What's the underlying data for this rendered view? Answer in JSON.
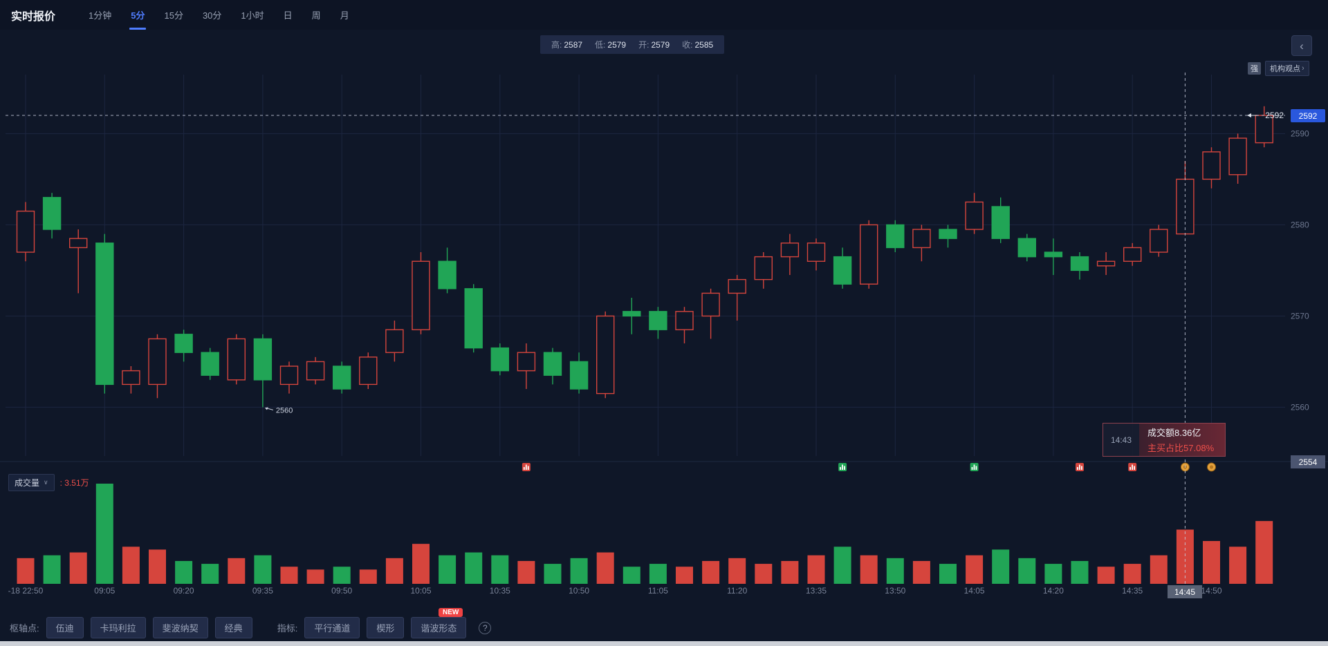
{
  "header": {
    "title": "实时报价",
    "tabs": [
      {
        "label": "1分钟"
      },
      {
        "label": "5分"
      },
      {
        "label": "15分"
      },
      {
        "label": "30分"
      },
      {
        "label": "1小时"
      },
      {
        "label": "日"
      },
      {
        "label": "周"
      },
      {
        "label": "月"
      }
    ]
  },
  "ohlc_bar": {
    "items": [
      {
        "label": "高:",
        "value": "2587"
      },
      {
        "label": "低:",
        "value": "2579"
      },
      {
        "label": "开:",
        "value": "2579"
      },
      {
        "label": "收:",
        "value": "2585"
      }
    ]
  },
  "top_right": {
    "chevron": "‹",
    "strength_badge": "强",
    "institution_link": "机构观点",
    "link_arrow": "›"
  },
  "price_axis": {
    "current_price_tag": "2592",
    "bottom_tag": "2554"
  },
  "annotations": {
    "low_label": "2560",
    "current_price_label": "2592",
    "crosshair_time": "14:45",
    "tooltip": {
      "time": "14:43",
      "line1": "成交额8.36亿",
      "line2": "主买占比57.08%"
    }
  },
  "volume_pane": {
    "indicator_label": "成交量",
    "caret": "∨",
    "value_prefix": ":",
    "value": "3.51万"
  },
  "bottom_toolbar": {
    "pivot_label": "枢轴点:",
    "pivot_buttons": [
      "伍迪",
      "卡玛利拉",
      "斐波纳契",
      "经典"
    ],
    "indicator_label": "指标:",
    "indicator_buttons": [
      "平行通道",
      "楔形",
      "谐波形态"
    ],
    "new_badge": "NEW",
    "help_icon": "?"
  },
  "colors": {
    "up_red": "#d6453d",
    "down_green": "#21a556",
    "accent_blue": "#2a58dd",
    "alert_red": "#ef4f4a",
    "badge_orange": "#e6a23c",
    "grid": "#1c2640",
    "axis_text": "#7a8398",
    "background": "#0f1728",
    "crosshair": "#c7cedd"
  },
  "chart_data": {
    "type": "candlestick",
    "timeframe": "5分",
    "current_price": 2592,
    "price_axis_ticks": [
      2590,
      2580,
      2570,
      2560
    ],
    "bottom_axis_price": 2554,
    "low_annotation": {
      "candle_index": 9,
      "price": 2560,
      "label": "2560"
    },
    "crosshair": {
      "candle_index": 44,
      "time_label": "14:45",
      "price": 2592
    },
    "x_labels": [
      {
        "candle_index": 0,
        "label": "-18 22:50"
      },
      {
        "candle_index": 3,
        "label": "09:05"
      },
      {
        "candle_index": 6,
        "label": "09:20"
      },
      {
        "candle_index": 9,
        "label": "09:35"
      },
      {
        "candle_index": 12,
        "label": "09:50"
      },
      {
        "candle_index": 15,
        "label": "10:05"
      },
      {
        "candle_index": 18,
        "label": "10:35"
      },
      {
        "candle_index": 21,
        "label": "10:50"
      },
      {
        "candle_index": 24,
        "label": "11:05"
      },
      {
        "candle_index": 27,
        "label": "11:20"
      },
      {
        "candle_index": 30,
        "label": "13:35"
      },
      {
        "candle_index": 33,
        "label": "13:50"
      },
      {
        "candle_index": 36,
        "label": "14:05"
      },
      {
        "candle_index": 39,
        "label": "14:20"
      },
      {
        "candle_index": 42,
        "label": "14:35"
      },
      {
        "candle_index": 45,
        "label": "14:50"
      }
    ],
    "markers": [
      {
        "candle_index": 19,
        "type": "red-signal"
      },
      {
        "candle_index": 31,
        "type": "green-signal"
      },
      {
        "candle_index": 36,
        "type": "green-signal"
      },
      {
        "candle_index": 40,
        "type": "red-signal"
      },
      {
        "candle_index": 42,
        "type": "red-signal"
      },
      {
        "candle_index": 44,
        "type": "orange-signal"
      },
      {
        "candle_index": 45,
        "type": "orange-signal"
      }
    ],
    "candles_format": [
      "open",
      "high",
      "low",
      "close",
      "volume_wan"
    ],
    "times": [
      "22:50",
      "22:55",
      "23:00",
      "09:05",
      "09:10",
      "09:15",
      "09:20",
      "09:25",
      "09:30",
      "09:35",
      "09:40",
      "09:45",
      "09:50",
      "09:55",
      "10:00",
      "10:05",
      "10:10",
      "10:15",
      "10:35",
      "10:40",
      "10:45",
      "10:50",
      "10:55",
      "11:00",
      "11:05",
      "11:10",
      "11:15",
      "11:20",
      "11:25",
      "11:30",
      "13:35",
      "13:40",
      "13:45",
      "13:50",
      "13:55",
      "14:00",
      "14:05",
      "14:10",
      "14:15",
      "14:20",
      "14:25",
      "14:30",
      "14:35",
      "14:40",
      "14:45",
      "14:50",
      "14:55",
      "15:00"
    ],
    "candles": [
      [
        2577,
        2582.5,
        2576,
        2581.5,
        0.9
      ],
      [
        2583,
        2583.5,
        2578.5,
        2579.5,
        1.0
      ],
      [
        2577.5,
        2579.5,
        2572.5,
        2578.5,
        1.1
      ],
      [
        2578,
        2579,
        2561.5,
        2562.5,
        3.51
      ],
      [
        2562.5,
        2564.5,
        2561.5,
        2564,
        1.3
      ],
      [
        2562.5,
        2568,
        2561,
        2567.5,
        1.2
      ],
      [
        2568,
        2568.5,
        2565,
        2566,
        0.8
      ],
      [
        2566,
        2566.5,
        2563,
        2563.5,
        0.7
      ],
      [
        2563,
        2568,
        2562.5,
        2567.5,
        0.9
      ],
      [
        2567.5,
        2568,
        2560,
        2563,
        1.0
      ],
      [
        2562.5,
        2565,
        2561.5,
        2564.5,
        0.6
      ],
      [
        2563,
        2565.5,
        2562.5,
        2565,
        0.5
      ],
      [
        2564.5,
        2565,
        2561.5,
        2562,
        0.6
      ],
      [
        2562.5,
        2566,
        2562,
        2565.5,
        0.5
      ],
      [
        2566,
        2569.5,
        2565,
        2568.5,
        0.9
      ],
      [
        2568.5,
        2577,
        2568,
        2576,
        1.4
      ],
      [
        2576,
        2577.5,
        2572.5,
        2573,
        1.0
      ],
      [
        2573,
        2573.5,
        2566,
        2566.5,
        1.1
      ],
      [
        2566.5,
        2567,
        2563.5,
        2564,
        1.0
      ],
      [
        2564,
        2567,
        2562,
        2566,
        0.8
      ],
      [
        2566,
        2566.5,
        2562.5,
        2563.5,
        0.7
      ],
      [
        2565,
        2566,
        2561.5,
        2562,
        0.9
      ],
      [
        2561.5,
        2570.5,
        2561,
        2570,
        1.1
      ],
      [
        2570.5,
        2572,
        2568,
        2570,
        0.6
      ],
      [
        2570.5,
        2571,
        2567.5,
        2568.5,
        0.7
      ],
      [
        2568.5,
        2571,
        2567,
        2570.5,
        0.6
      ],
      [
        2570,
        2573,
        2567.5,
        2572.5,
        0.8
      ],
      [
        2572.5,
        2574.5,
        2569.5,
        2574,
        0.9
      ],
      [
        2574,
        2577,
        2573,
        2576.5,
        0.7
      ],
      [
        2576.5,
        2579,
        2574.5,
        2578,
        0.8
      ],
      [
        2576,
        2578.5,
        2575,
        2578,
        1.0
      ],
      [
        2576.5,
        2577.5,
        2573,
        2573.5,
        1.3
      ],
      [
        2573.5,
        2580.5,
        2573,
        2580,
        1.0
      ],
      [
        2580,
        2580.5,
        2577,
        2577.5,
        0.9
      ],
      [
        2577.5,
        2580,
        2576,
        2579.5,
        0.8
      ],
      [
        2579.5,
        2580,
        2577.5,
        2578.5,
        0.7
      ],
      [
        2579.5,
        2583.5,
        2579,
        2582.5,
        1.0
      ],
      [
        2582,
        2583,
        2578,
        2578.5,
        1.2
      ],
      [
        2578.5,
        2579,
        2576,
        2576.5,
        0.9
      ],
      [
        2577,
        2578.5,
        2574.5,
        2576.5,
        0.7
      ],
      [
        2576.5,
        2577,
        2574,
        2575,
        0.8
      ],
      [
        2575.5,
        2577,
        2574.5,
        2576,
        0.6
      ],
      [
        2576,
        2578,
        2575.5,
        2577.5,
        0.7
      ],
      [
        2577,
        2580,
        2576.5,
        2579.5,
        1.0
      ],
      [
        2579,
        2587,
        2579,
        2585,
        1.9
      ],
      [
        2585,
        2588.5,
        2584,
        2588,
        1.5
      ],
      [
        2585.5,
        2590,
        2584.5,
        2589.5,
        1.3
      ],
      [
        2589,
        2593,
        2588.5,
        2592,
        2.2
      ]
    ]
  }
}
